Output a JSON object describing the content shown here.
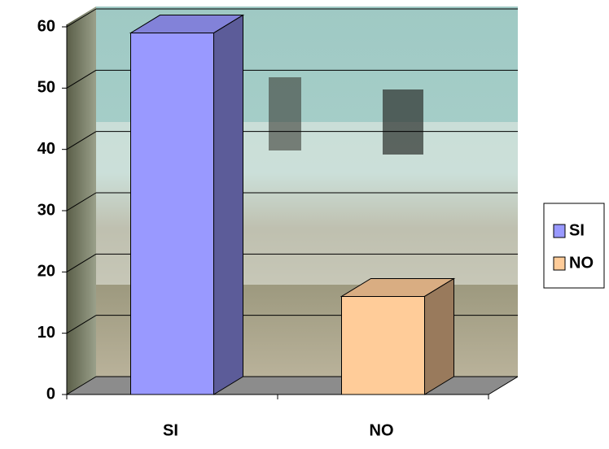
{
  "chart_data": {
    "type": "bar3d",
    "categories": [
      "SI",
      "NO"
    ],
    "series": [
      {
        "name": "SI",
        "color": "#9999ff",
        "values": [
          59,
          null
        ]
      },
      {
        "name": "NO",
        "color": "#ffcc99",
        "values": [
          null,
          16
        ]
      }
    ],
    "ylim": [
      0,
      60
    ],
    "yticks": [
      0,
      10,
      20,
      30,
      40,
      50,
      60
    ],
    "grid": true,
    "legend": "right"
  }
}
